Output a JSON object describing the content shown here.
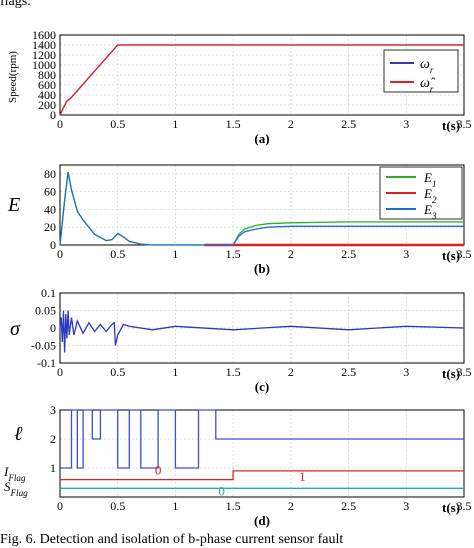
{
  "caption_top": "flags.",
  "caption_bottom": "Fig. 6. Detection and isolation of b-phase current sensor fault",
  "colors": {
    "omega": "#3a3ab0",
    "omega_hat": "#e02020",
    "E1": "#2ab02a",
    "E2": "#e02020",
    "E3": "#1f6fc8",
    "sigma": "#2a3ac0",
    "ell": "#3b4fd0",
    "I_flag": "#e02020",
    "S_flag": "#20b0b0"
  },
  "chart_data": [
    {
      "id": "a",
      "type": "line",
      "panel_label": "(a)",
      "xlabel": "t(s)",
      "ylabel": "Speed(rpm)",
      "xlim": [
        0,
        3.5
      ],
      "ylim": [
        0,
        1600
      ],
      "xticks": [
        "0",
        "0.5",
        "1",
        "1.5",
        "2",
        "2.5",
        "3",
        "3.5"
      ],
      "yticks": [
        "0",
        "200",
        "400",
        "600",
        "800",
        "1000",
        "1200",
        "1400",
        "1600"
      ],
      "legend": [
        "ω_r",
        "ω̂_r"
      ],
      "legend_position": "bottom-right",
      "series": [
        {
          "name": "ω_r",
          "x": [
            0,
            0.03,
            0.06,
            0.09,
            0.5,
            3.5
          ],
          "y": [
            0,
            150,
            280,
            330,
            1400,
            1400
          ]
        },
        {
          "name": "ω̂_r",
          "x": [
            0,
            0.03,
            0.06,
            0.09,
            0.5,
            3.5
          ],
          "y": [
            0,
            150,
            280,
            330,
            1400,
            1400
          ]
        }
      ]
    },
    {
      "id": "b",
      "type": "line",
      "panel_label": "(b)",
      "xlabel": "t(s)",
      "ylabel": "E",
      "xlim": [
        0,
        3.5
      ],
      "ylim": [
        0,
        90
      ],
      "xticks": [
        "0",
        "0.5",
        "1",
        "1.5",
        "2",
        "2.5",
        "3",
        "3.5"
      ],
      "yticks": [
        "0",
        "20",
        "40",
        "60",
        "80"
      ],
      "legend": [
        "E_1",
        "E_2",
        "E_3"
      ],
      "legend_position": "top-right",
      "series": [
        {
          "name": "E_1",
          "x": [
            0,
            0.04,
            0.07,
            0.1,
            0.15,
            0.2,
            0.3,
            0.4,
            0.45,
            0.5,
            0.55,
            0.6,
            0.7,
            0.8,
            1.5,
            1.55,
            1.6,
            1.7,
            1.8,
            2.0,
            2.5,
            3.5
          ],
          "y": [
            0,
            50,
            82,
            62,
            38,
            28,
            12,
            5,
            6,
            13,
            9,
            4,
            1,
            0,
            0,
            12,
            18,
            22,
            24,
            25,
            26,
            26
          ]
        },
        {
          "name": "E_2",
          "x": [
            1.25,
            3.5
          ],
          "y": [
            0,
            0
          ]
        },
        {
          "name": "E_3",
          "x": [
            0,
            0.04,
            0.07,
            0.1,
            0.15,
            0.2,
            0.3,
            0.4,
            0.45,
            0.5,
            0.55,
            0.6,
            0.7,
            0.8,
            1.5,
            1.55,
            1.6,
            1.7,
            1.8,
            2.0,
            2.5,
            3.5
          ],
          "y": [
            0,
            50,
            82,
            62,
            38,
            28,
            12,
            5,
            6,
            13,
            9,
            4,
            1,
            0,
            0,
            10,
            15,
            18,
            20,
            21,
            21,
            21
          ]
        }
      ]
    },
    {
      "id": "c",
      "type": "line",
      "panel_label": "(c)",
      "xlabel": "t(s)",
      "ylabel": "σ",
      "xlim": [
        0,
        3.5
      ],
      "ylim": [
        -0.1,
        0.1
      ],
      "xticks": [
        "0",
        "0.5",
        "1",
        "1.5",
        "2",
        "2.5",
        "3",
        "3.5"
      ],
      "yticks": [
        "-0.1",
        "-0.05",
        "0",
        "0.05",
        "0.1"
      ],
      "series": [
        {
          "name": "σ",
          "x": [
            0,
            0.01,
            0.02,
            0.03,
            0.04,
            0.05,
            0.06,
            0.07,
            0.08,
            0.1,
            0.12,
            0.15,
            0.2,
            0.25,
            0.3,
            0.35,
            0.4,
            0.45,
            0.47,
            0.48,
            0.5,
            0.55,
            0.6,
            0.8,
            1.0,
            1.5,
            2.0,
            2.5,
            3.0,
            3.5
          ],
          "y": [
            0,
            0.03,
            -0.04,
            0.05,
            -0.07,
            0.04,
            -0.03,
            0.05,
            -0.02,
            0.03,
            -0.02,
            0.02,
            -0.015,
            0.015,
            -0.01,
            0.01,
            -0.01,
            0.01,
            0.015,
            -0.05,
            -0.02,
            0.01,
            0.005,
            -0.005,
            0.005,
            -0.005,
            0.005,
            -0.005,
            0.005,
            0
          ]
        }
      ]
    },
    {
      "id": "d",
      "type": "line",
      "panel_label": "(d)",
      "xlabel": "t(s)",
      "ylabel_main": "ℓ",
      "ylabel_iflag": "I_Flag",
      "ylabel_sflag": "S_Flag",
      "xlim": [
        0,
        3.5
      ],
      "ylim": [
        0,
        3
      ],
      "xticks": [
        "0",
        "0.5",
        "1",
        "1.5",
        "2",
        "2.5",
        "3",
        "3.5"
      ],
      "yticks": [
        "1",
        "2",
        "3"
      ],
      "annotations": [
        "0",
        "1",
        "0"
      ],
      "series": [
        {
          "name": "ℓ",
          "x": [
            0,
            0.1,
            0.1,
            0.15,
            0.15,
            0.2,
            0.2,
            0.28,
            0.28,
            0.35,
            0.35,
            0.5,
            0.5,
            0.6,
            0.6,
            0.7,
            0.7,
            0.85,
            0.85,
            1.0,
            1.0,
            1.2,
            1.2,
            1.35,
            1.35,
            1.5,
            1.5,
            3.5
          ],
          "y": [
            1,
            1,
            3,
            3,
            1,
            1,
            3,
            3,
            2,
            2,
            3,
            3,
            1,
            1,
            3,
            3,
            1,
            1,
            3,
            3,
            1,
            1,
            3,
            3,
            2,
            2,
            2,
            2
          ]
        },
        {
          "name": "I_Flag",
          "x": [
            0,
            1.5,
            1.5,
            3.5
          ],
          "y": [
            0.6,
            0.6,
            0.9,
            0.9
          ]
        },
        {
          "name": "S_Flag",
          "x": [
            0,
            3.5
          ],
          "y": [
            0.3,
            0.3
          ]
        }
      ]
    }
  ]
}
